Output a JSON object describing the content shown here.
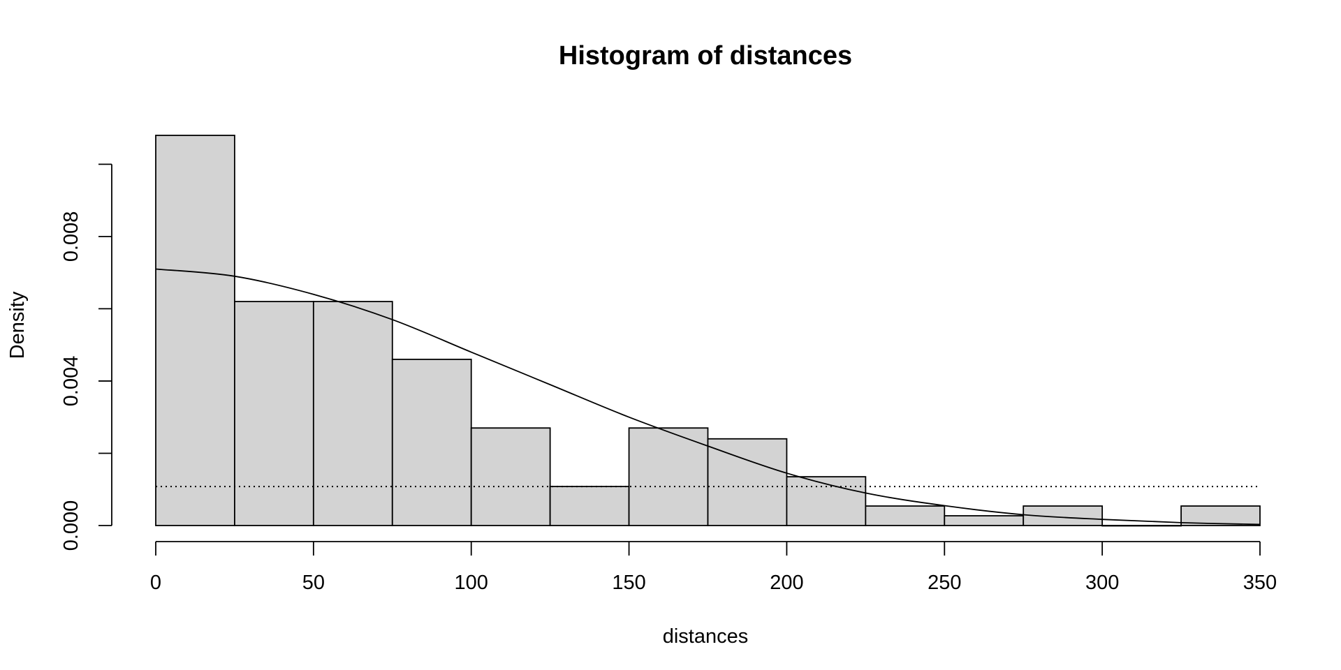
{
  "chart_data": {
    "type": "bar",
    "title": "Histogram of distances",
    "xlabel": "distances",
    "ylabel": "Density",
    "xlim": [
      0,
      350
    ],
    "ylim": [
      0,
      0.0102
    ],
    "bin_width": 25,
    "bins": [
      {
        "start": 0,
        "end": 25,
        "density": 0.0108
      },
      {
        "start": 25,
        "end": 50,
        "density": 0.0062
      },
      {
        "start": 50,
        "end": 75,
        "density": 0.0062
      },
      {
        "start": 75,
        "end": 100,
        "density": 0.0046
      },
      {
        "start": 100,
        "end": 125,
        "density": 0.0027
      },
      {
        "start": 125,
        "end": 150,
        "density": 0.00108
      },
      {
        "start": 150,
        "end": 175,
        "density": 0.0027
      },
      {
        "start": 175,
        "end": 200,
        "density": 0.0024
      },
      {
        "start": 200,
        "end": 225,
        "density": 0.00135
      },
      {
        "start": 225,
        "end": 250,
        "density": 0.00054
      },
      {
        "start": 250,
        "end": 275,
        "density": 0.00027
      },
      {
        "start": 275,
        "end": 300,
        "density": 0.00054
      },
      {
        "start": 300,
        "end": 325,
        "density": 0
      },
      {
        "start": 325,
        "end": 350,
        "density": 0.00054
      }
    ],
    "density_curve": {
      "x": [
        0,
        25,
        50,
        75,
        100,
        125,
        150,
        175,
        200,
        225,
        250,
        275,
        300,
        325,
        350
      ],
      "y": [
        0.0071,
        0.0069,
        0.0064,
        0.0057,
        0.0048,
        0.0039,
        0.003,
        0.0022,
        0.00145,
        0.0009,
        0.00055,
        0.0003,
        0.00017,
        8e-05,
        3e-05
      ]
    },
    "reference_line": {
      "y": 0.00108,
      "style": "dotted"
    },
    "x_ticks": [
      0,
      50,
      100,
      150,
      200,
      250,
      300,
      350
    ],
    "x_tick_labels": [
      "0",
      "50",
      "100",
      "150",
      "200",
      "250",
      "300",
      "350"
    ],
    "y_ticks": [
      0,
      0.002,
      0.004,
      0.006,
      0.008,
      0.01
    ],
    "y_tick_labels": [
      "0.000",
      "",
      "0.004",
      "",
      "0.008",
      ""
    ],
    "grid": false,
    "legend": "none",
    "colors": {
      "bar_fill": "#d3d3d3",
      "bar_stroke": "#000000",
      "line": "#000000"
    }
  }
}
